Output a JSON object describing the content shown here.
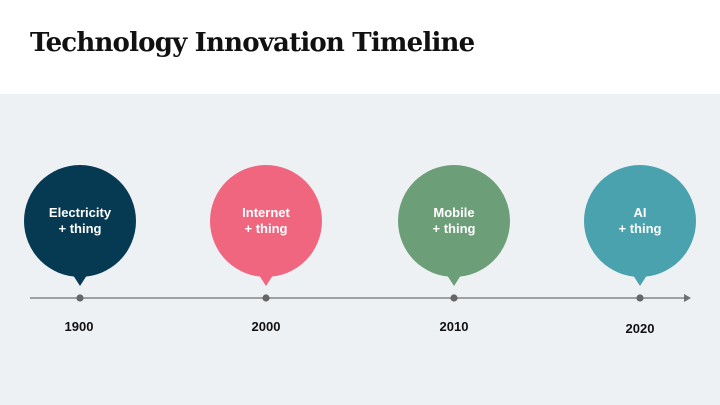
{
  "title": "Technology Innovation Timeline",
  "colors": {
    "stage_bg": "#eef1f4",
    "axis": "#707070",
    "dot": "#666666"
  },
  "milestones": [
    {
      "line1": "Electricity",
      "line2": "+ thing",
      "year": "1900",
      "color": "#053a52"
    },
    {
      "line1": "Internet",
      "line2": "+ thing",
      "year": "2000",
      "color": "#f0667f"
    },
    {
      "line1": "Mobile",
      "line2": "+ thing",
      "year": "2010",
      "color": "#6c9e78"
    },
    {
      "line1": "AI",
      "line2": "+ thing",
      "year": "2020",
      "color": "#49a2ae"
    }
  ]
}
